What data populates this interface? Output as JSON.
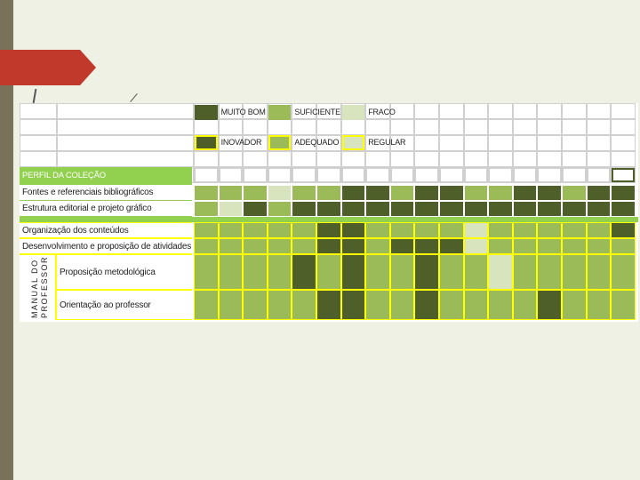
{
  "legend": [
    {
      "label": "MUITO BOM",
      "color": "#4e5f2a",
      "style": "plain"
    },
    {
      "label": "SUFICIENTE",
      "color": "#9bbb59",
      "style": "plain"
    },
    {
      "label": "FRACO",
      "color": "#d7e4bd",
      "style": "plain"
    },
    {
      "label": "INOVADOR",
      "color": "#4e5f2a",
      "style": "boxed"
    },
    {
      "label": "ADEQUADO",
      "color": "#9bbb59",
      "style": "boxed"
    },
    {
      "label": "REGULAR",
      "color": "#d7e4bd",
      "style": "boxed"
    }
  ],
  "colors": {
    "D": "#4e5f2a",
    "M": "#9bbb59",
    "L": "#d7e4bd",
    "band": "#92d050",
    "yellow": "#ffff00",
    "header_bg": "#92d050"
  },
  "section_title": "PERFIL DA COLEÇÃO",
  "side_label": {
    "line1": "MANUAL DO",
    "line2": "PROFESSOR"
  },
  "rows": [
    {
      "label": "Fontes e referenciais bibliográficos",
      "cells": "MMMLMMDDMDDMMDDMDD",
      "type": "plain"
    },
    {
      "label": "Estrutura editorial e projeto gráfico",
      "cells": "MLDMDDDDDDDDDDDDDD",
      "type": "plain"
    },
    {
      "label": "Organização dos conteúdos",
      "cells": "MMMMMDDMMMMLMMMMMD",
      "type": "yellow"
    },
    {
      "label": "Desenvolvimento e proposição de atividades",
      "cells": "MMMMMDDMDDDLMMMMMM",
      "type": "yellow"
    },
    {
      "label": "Proposição metodológica",
      "cells": "MMMMDMDMMDMMLMMMMM",
      "type": "yellow-tall"
    },
    {
      "label": "Orientação ao professor",
      "cells": "MMMMMDDMMDMMMMDMMM",
      "type": "yellow-tall"
    }
  ]
}
